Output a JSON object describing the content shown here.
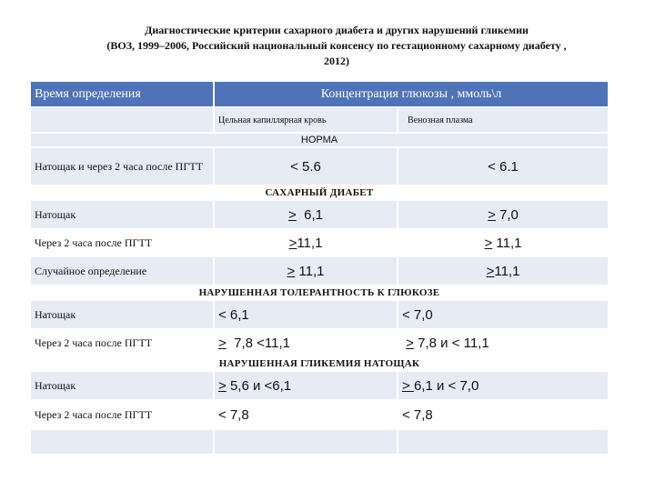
{
  "title": {
    "line1": "Диагностические критерии сахарного диабета и других нарушений гликемии",
    "line2": "(ВОЗ, 1999–2006, Российский национальный консенсу по гестационному сахарному диабету ,",
    "line3": "2012)"
  },
  "header": {
    "col1": "Время определения",
    "col2": "Концентрация глюкозы , ммоль\\л"
  },
  "subheader": {
    "capillary": "Цельная капиллярная кровь",
    "venous": "Венозная плазма"
  },
  "norm": {
    "section": "НОРМА",
    "label": "Натощак и через 2 часа после ПГТТ",
    "capillary": "< 5.6",
    "venous": "<  6.1"
  },
  "diabetes": {
    "section": "САХАРНЫЙ ДИАБЕТ",
    "rows": [
      {
        "label": "Натощак",
        "capillary": "6,1",
        "venous": "7,0"
      },
      {
        "label": "Через 2 часа после ПГТТ",
        "capillary": "11,1",
        "venous": "11,1"
      },
      {
        "label": "Случайное определение",
        "capillary": "11,1",
        "venous": "11,1"
      }
    ]
  },
  "igt": {
    "section": "НАРУШЕННАЯ ТОЛЕРАНТНОСТЬ К ГЛЮКОЗЕ",
    "rows": [
      {
        "label": "Натощак",
        "capillary": "< 6,1",
        "venous": "< 7,0"
      },
      {
        "label": "Через 2 часа после ПГТТ",
        "capillary_rest": "7,8  <11,1",
        "venous_rest": "7,8 и < 11,1"
      }
    ]
  },
  "ifg": {
    "section": "НАРУШЕННАЯ  ГЛИКЕМИЯ  НАТОЩАК",
    "rows": [
      {
        "label": "Натощак",
        "capillary_rest": "5,6  и  <6,1",
        "venous_rest": "6,1 и  < 7,0"
      },
      {
        "label": "Через 2 часа после ПГТТ",
        "capillary": "< 7,8",
        "venous": "< 7,8"
      }
    ]
  },
  "symbols": {
    "ge": ">",
    "ge_spaced": "> ",
    "ge_u": ">",
    "lt": "<"
  },
  "colors": {
    "header_bg": "#4e73b8",
    "row_light": "#e6ebf4",
    "row_white": "#ffffff"
  }
}
